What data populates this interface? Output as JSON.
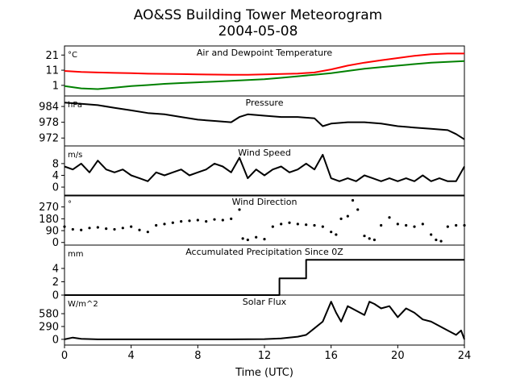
{
  "figure": {
    "title": "AO&SS Building Tower Meteorogram",
    "date": "2004-05-08",
    "xlabel": "Time (UTC)"
  },
  "chart_data": [
    {
      "type": "line",
      "title": "Air and Dewpoint Temperature",
      "ylabel": "°C",
      "xlim": [
        0,
        24
      ],
      "ylim": [
        -6,
        27
      ],
      "xticks": [
        "0",
        "4",
        "8",
        "12",
        "16",
        "20",
        "24"
      ],
      "yticks": [
        "1",
        "11",
        "21"
      ],
      "ytick_values": [
        1,
        11,
        21
      ],
      "series": [
        {
          "color": "#ff0000",
          "x": [
            0,
            1,
            2,
            3,
            4,
            5,
            6,
            7,
            8,
            9,
            10,
            11,
            12,
            13,
            14,
            15,
            16,
            17,
            18,
            19,
            20,
            21,
            22,
            23,
            24
          ],
          "y": [
            10.5,
            9.8,
            9.5,
            9.2,
            9.0,
            8.7,
            8.6,
            8.4,
            8.2,
            8.1,
            8.0,
            8.0,
            8.2,
            8.5,
            8.8,
            9.5,
            11.5,
            14.0,
            16.0,
            17.5,
            19.0,
            20.5,
            21.5,
            22.0,
            22.0
          ]
        },
        {
          "color": "#008000",
          "x": [
            0,
            1,
            2,
            3,
            4,
            5,
            6,
            7,
            8,
            9,
            10,
            11,
            12,
            13,
            14,
            15,
            16,
            17,
            18,
            19,
            20,
            21,
            22,
            23,
            24
          ],
          "y": [
            0.5,
            -1.0,
            -1.5,
            -0.5,
            0.5,
            1.2,
            2.0,
            2.5,
            3.0,
            3.5,
            4.0,
            4.5,
            5.0,
            6.0,
            7.0,
            8.0,
            9.0,
            10.5,
            12.0,
            13.0,
            14.0,
            15.0,
            16.0,
            16.5,
            17.0
          ]
        }
      ]
    },
    {
      "type": "line",
      "title": "Pressure",
      "ylabel": "hPa",
      "xlim": [
        0,
        24
      ],
      "ylim": [
        969,
        988
      ],
      "yticks": [
        "972",
        "978",
        "984"
      ],
      "ytick_values": [
        972,
        978,
        984
      ],
      "series": [
        {
          "color": "#000000",
          "x": [
            0,
            1,
            2,
            3,
            4,
            5,
            6,
            7,
            8,
            9,
            10,
            10.5,
            11,
            12,
            13,
            14,
            15,
            15.5,
            16,
            17,
            18,
            19,
            20,
            21,
            22,
            23,
            23.5,
            24
          ],
          "y": [
            985.5,
            985.0,
            984.5,
            983.5,
            982.5,
            981.5,
            981.0,
            980.0,
            979.0,
            978.5,
            978.0,
            980.0,
            981.0,
            980.5,
            980.0,
            980.0,
            979.5,
            976.5,
            977.5,
            978.0,
            978.0,
            977.5,
            976.5,
            976.0,
            975.5,
            975.0,
            973.5,
            971.5
          ]
        }
      ]
    },
    {
      "type": "line",
      "title": "Wind Speed",
      "ylabel": "m/s",
      "xlim": [
        0,
        24
      ],
      "ylim": [
        -3,
        14
      ],
      "yticks": [
        "0",
        "4",
        "8"
      ],
      "ytick_values": [
        0,
        4,
        8
      ],
      "series": [
        {
          "color": "#000000",
          "x": [
            0,
            0.5,
            1,
            1.5,
            2,
            2.5,
            3,
            3.5,
            4,
            4.5,
            5,
            5.5,
            6,
            6.5,
            7,
            7.5,
            8,
            8.5,
            9,
            9.5,
            10,
            10.5,
            11,
            11.5,
            12,
            12.5,
            13,
            13.5,
            14,
            14.5,
            15,
            15.5,
            16,
            16.5,
            17,
            17.5,
            18,
            18.5,
            19,
            19.5,
            20,
            20.5,
            21,
            21.5,
            22,
            22.5,
            23,
            23.5,
            24
          ],
          "y": [
            7,
            6,
            8,
            5,
            9,
            6,
            5,
            6,
            4,
            3,
            2,
            5,
            4,
            5,
            6,
            4,
            5,
            6,
            8,
            7,
            5,
            10,
            3,
            6,
            4,
            6,
            7,
            5,
            6,
            8,
            6,
            11,
            3,
            2,
            3,
            2,
            4,
            3,
            2,
            3,
            2,
            3,
            2,
            4,
            2,
            3,
            2,
            2,
            7
          ]
        }
      ]
    },
    {
      "type": "scatter",
      "title": "Wind Direction",
      "ylabel": "°",
      "xlim": [
        0,
        24
      ],
      "ylim": [
        -20,
        360
      ],
      "yticks": [
        "0",
        "90",
        "180",
        "270"
      ],
      "ytick_values": [
        0,
        90,
        180,
        270
      ],
      "series": [
        {
          "color": "#000000",
          "x": [
            0,
            0.5,
            1,
            1.5,
            2,
            2.5,
            3,
            3.5,
            4,
            4.5,
            5,
            5.5,
            6,
            6.5,
            7,
            7.5,
            8,
            8.5,
            9,
            9.5,
            10,
            10.5,
            10.7,
            11,
            11.5,
            12,
            12.5,
            13,
            13.5,
            14,
            14.5,
            15,
            15.5,
            16,
            16.3,
            16.6,
            17,
            17.3,
            17.6,
            18,
            18.3,
            18.6,
            19,
            19.5,
            20,
            20.5,
            21,
            21.5,
            22,
            22.3,
            22.6,
            23,
            23.5,
            24
          ],
          "y": [
            120,
            100,
            95,
            110,
            115,
            105,
            100,
            110,
            120,
            95,
            80,
            130,
            140,
            150,
            160,
            165,
            170,
            160,
            175,
            170,
            180,
            250,
            30,
            20,
            40,
            25,
            120,
            140,
            150,
            140,
            135,
            130,
            120,
            80,
            60,
            180,
            200,
            320,
            250,
            50,
            30,
            20,
            130,
            190,
            140,
            130,
            120,
            140,
            60,
            20,
            10,
            120,
            130,
            130
          ]
        }
      ]
    },
    {
      "type": "line",
      "title": "Accumulated Precipitation Since 0Z",
      "ylabel": "mm",
      "xlim": [
        0,
        24
      ],
      "ylim": [
        0,
        7.5
      ],
      "yticks": [
        "0",
        "2",
        "4"
      ],
      "ytick_values": [
        0,
        2,
        4
      ],
      "series": [
        {
          "color": "#000000",
          "x": [
            0,
            12.9,
            12.9,
            14.5,
            14.5,
            24
          ],
          "y": [
            0,
            0,
            2.5,
            2.5,
            5.3,
            5.3
          ]
        }
      ]
    },
    {
      "type": "line",
      "title": "Solar Flux",
      "ylabel": "W/m^2",
      "xlim": [
        0,
        24
      ],
      "ylim": [
        -130,
        1000
      ],
      "yticks": [
        "0",
        "290",
        "580"
      ],
      "ytick_values": [
        0,
        290,
        580
      ],
      "series": [
        {
          "color": "#000000",
          "x": [
            0,
            0.5,
            1,
            2,
            4,
            6,
            8,
            10,
            12,
            13,
            14,
            14.5,
            15,
            15.5,
            16,
            16.3,
            16.6,
            17,
            17.5,
            18,
            18.3,
            18.6,
            19,
            19.5,
            20,
            20.5,
            21,
            21.5,
            22,
            22.5,
            23,
            23.5,
            23.8,
            24
          ],
          "y": [
            0,
            40,
            10,
            0,
            0,
            0,
            0,
            0,
            5,
            20,
            60,
            100,
            250,
            400,
            850,
            600,
            400,
            750,
            650,
            550,
            850,
            800,
            700,
            750,
            500,
            700,
            600,
            450,
            400,
            300,
            200,
            100,
            200,
            0
          ]
        }
      ]
    }
  ]
}
